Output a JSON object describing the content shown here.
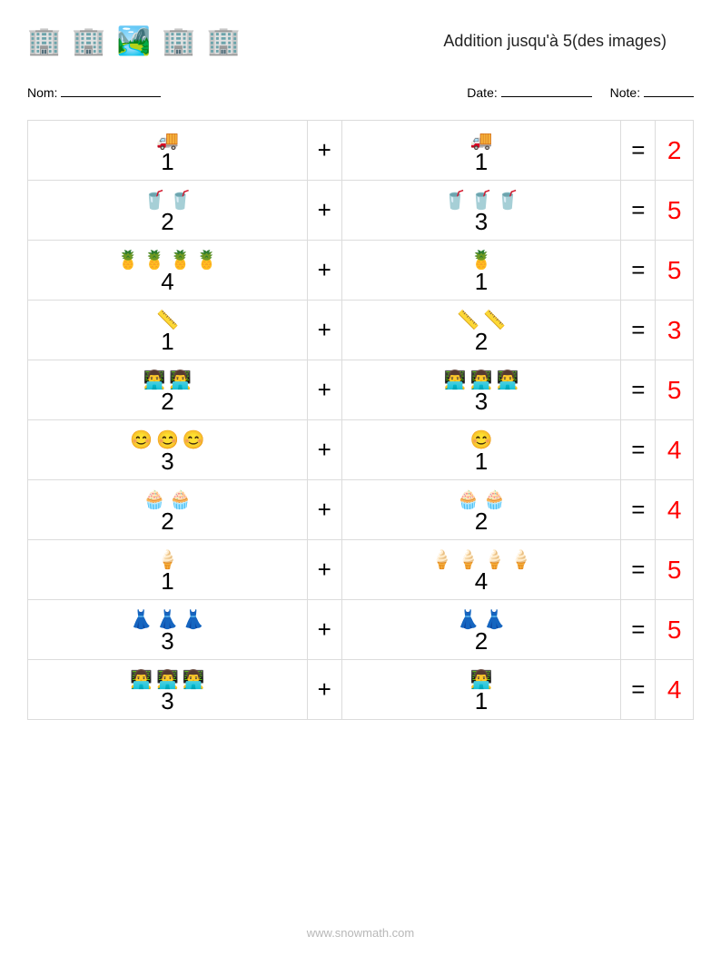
{
  "colors": {
    "grid_border": "#dcdcdc",
    "num_color": "#000000",
    "ans_color": "#ff0000",
    "footer_color": "#b8b8b8"
  },
  "header": {
    "title": "Addition jusqu'à 5(des images)",
    "icons": [
      "🏢",
      "🏢",
      "🏞️",
      "🏢",
      "🏢"
    ]
  },
  "meta": {
    "name_label": "Nom:",
    "date_label": "Date:",
    "note_label": "Note:"
  },
  "op_plus": "+",
  "op_eq": "=",
  "item_emoji": {
    "truck": "🚚",
    "cup": "🥤",
    "pineapple": "🍍",
    "tape": "📏",
    "laptop_person": "👨‍💻",
    "hat_smile": "😊",
    "cupcake": "🧁",
    "icecream": "🍦",
    "doll": "👗",
    "laptop_person2": "👨‍💻"
  },
  "rows": [
    {
      "icon_key": "truck",
      "a": 1,
      "b": 1,
      "ans": 2
    },
    {
      "icon_key": "cup",
      "a": 2,
      "b": 3,
      "ans": 5
    },
    {
      "icon_key": "pineapple",
      "a": 4,
      "b": 1,
      "ans": 5
    },
    {
      "icon_key": "tape",
      "a": 1,
      "b": 2,
      "ans": 3
    },
    {
      "icon_key": "laptop_person",
      "a": 2,
      "b": 3,
      "ans": 5
    },
    {
      "icon_key": "hat_smile",
      "a": 3,
      "b": 1,
      "ans": 4
    },
    {
      "icon_key": "cupcake",
      "a": 2,
      "b": 2,
      "ans": 4
    },
    {
      "icon_key": "icecream",
      "a": 1,
      "b": 4,
      "ans": 5
    },
    {
      "icon_key": "doll",
      "a": 3,
      "b": 2,
      "ans": 5
    },
    {
      "icon_key": "laptop_person2",
      "a": 3,
      "b": 1,
      "ans": 4
    }
  ],
  "footer": "www.snowmath.com"
}
